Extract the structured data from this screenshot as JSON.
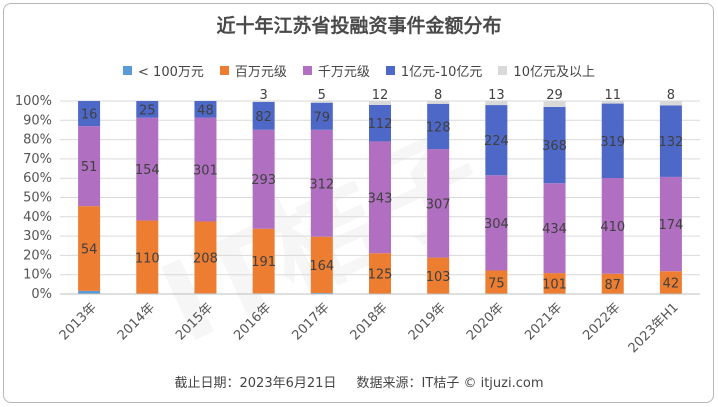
{
  "chart_data": {
    "type": "bar",
    "stacked": "percent",
    "title": "近十年江苏省投融资事件金额分布",
    "categories": [
      "2013年",
      "2014年",
      "2015年",
      "2016年",
      "2017年",
      "2018年",
      "2019年",
      "2020年",
      "2021年",
      "2022年",
      "2023年H1"
    ],
    "series": [
      {
        "name": "< 100万元",
        "values": [
          2,
          0,
          2,
          2,
          3,
          0,
          0,
          0,
          0,
          0,
          0
        ],
        "color": "#5b9bd5"
      },
      {
        "name": "百万元级",
        "values": [
          54,
          110,
          208,
          191,
          164,
          125,
          103,
          75,
          101,
          87,
          42
        ],
        "color": "#ed7d31"
      },
      {
        "name": "千万元级",
        "values": [
          51,
          154,
          301,
          293,
          312,
          343,
          307,
          304,
          434,
          410,
          174
        ],
        "color": "#b06fc0"
      },
      {
        "name": "1亿元-10亿元",
        "values": [
          16,
          25,
          48,
          82,
          79,
          112,
          128,
          224,
          368,
          319,
          132
        ],
        "color": "#4e68c8"
      },
      {
        "name": "10亿元及以上",
        "values": [
          0,
          0,
          0,
          3,
          5,
          12,
          8,
          13,
          29,
          11,
          8
        ],
        "color": "#d9d9d9"
      }
    ],
    "data_labels": [
      [
        "",
        "54",
        "51",
        "16",
        ""
      ],
      [
        "",
        "110",
        "154",
        "25",
        ""
      ],
      [
        "",
        "208",
        "301",
        "48",
        ""
      ],
      [
        "",
        "191",
        "293",
        "82",
        "3"
      ],
      [
        "",
        "164",
        "312",
        "79",
        "5"
      ],
      [
        "",
        "125",
        "343",
        "112",
        "12"
      ],
      [
        "",
        "103",
        "307",
        "128",
        "8"
      ],
      [
        "",
        "75",
        "304",
        "224",
        "13"
      ],
      [
        "",
        "101",
        "434",
        "368",
        "29"
      ],
      [
        "",
        "87",
        "410",
        "319",
        "11"
      ],
      [
        "",
        "42",
        "174",
        "132",
        "8"
      ]
    ],
    "yticks": [
      "0%",
      "10%",
      "20%",
      "30%",
      "40%",
      "50%",
      "60%",
      "70%",
      "80%",
      "90%",
      "100%"
    ],
    "ylim": [
      0,
      100
    ],
    "grid": true,
    "legend": "top"
  },
  "footer": {
    "date": "截止日期：2023年6月21日",
    "source": "数据来源：IT桔子 © itjuzi.com"
  }
}
